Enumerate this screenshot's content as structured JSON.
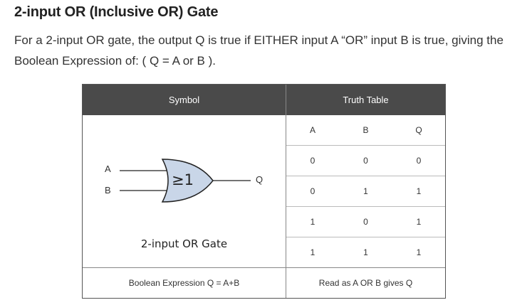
{
  "heading": "2-input OR (Inclusive OR) Gate",
  "paragraph": "For a 2-input OR gate, the output Q is true if EITHER input A “OR” input B is true, giving the Boolean Expression of: ( Q = A or B ).",
  "table": {
    "header_symbol": "Symbol",
    "header_truth": "Truth Table",
    "gate": {
      "input_a": "A",
      "input_b": "B",
      "output_q": "Q",
      "symbol_text": "≥1",
      "caption": "2-input OR Gate",
      "fill_color": "#c9d6e8"
    },
    "truth_headers": [
      "A",
      "B",
      "Q"
    ],
    "truth_rows": [
      [
        "0",
        "0",
        "0"
      ],
      [
        "0",
        "1",
        "1"
      ],
      [
        "1",
        "0",
        "1"
      ],
      [
        "1",
        "1",
        "1"
      ]
    ],
    "footer_left": "Boolean Expression Q = A+B",
    "footer_right": "Read as A OR B gives Q"
  }
}
